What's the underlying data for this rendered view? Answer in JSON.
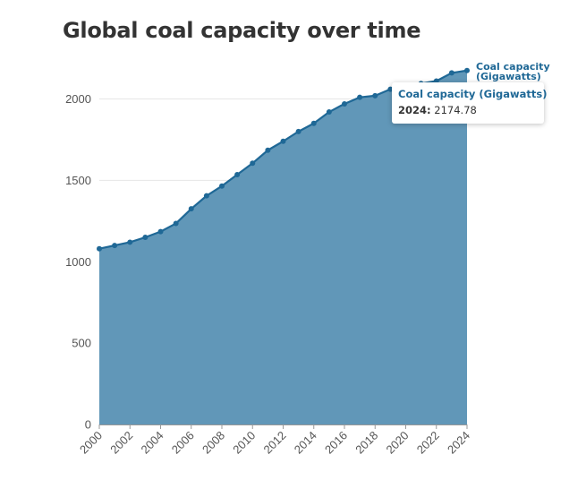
{
  "title": "Global coal capacity over time",
  "colors": {
    "line": "#1f6896",
    "area": "#6197b8",
    "grid": "#e6e6e6",
    "axis": "#999999"
  },
  "tooltip": {
    "series_name": "Coal capacity (Gigawatts)",
    "year": "2024:",
    "value": "2174.78"
  },
  "chart_data": {
    "type": "area",
    "x": [
      2000,
      2001,
      2002,
      2003,
      2004,
      2005,
      2006,
      2007,
      2008,
      2009,
      2010,
      2011,
      2012,
      2013,
      2014,
      2015,
      2016,
      2017,
      2018,
      2019,
      2020,
      2021,
      2022,
      2023,
      2024
    ],
    "series": [
      {
        "name": "Coal capacity (Gigawatts)",
        "label_lines": [
          "Coal capacity",
          "(Gigawatts)"
        ],
        "values": [
          1080,
          1100,
          1120,
          1150,
          1185,
          1235,
          1325,
          1405,
          1465,
          1535,
          1605,
          1685,
          1740,
          1800,
          1850,
          1920,
          1970,
          2010,
          2020,
          2060,
          2085,
          2095,
          2110,
          2160,
          2174.78
        ]
      }
    ],
    "xticks": [
      "2000",
      "2002",
      "2004",
      "2006",
      "2008",
      "2010",
      "2012",
      "2014",
      "2016",
      "2018",
      "2020",
      "2022",
      "2024"
    ],
    "yticks": [
      "0",
      "500",
      "1000",
      "1500",
      "2000"
    ],
    "ylim": [
      0,
      2200
    ],
    "xlim": [
      2000,
      2024
    ],
    "grid": "horizontal",
    "xlabel": "",
    "ylabel": ""
  }
}
